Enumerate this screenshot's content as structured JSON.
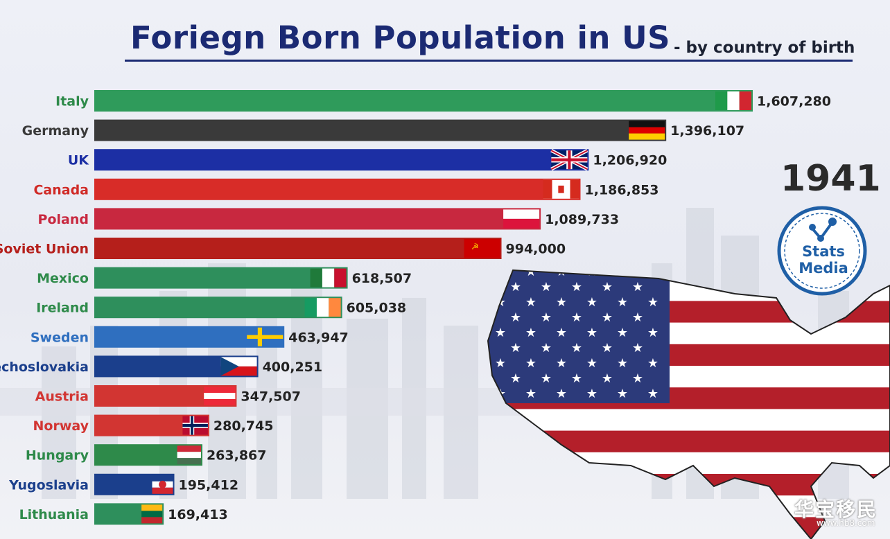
{
  "header": {
    "title": "Foriegn Born Population in US",
    "subtitle": "- by country of birth"
  },
  "year": "1941",
  "logo": {
    "line1": "Stats",
    "line2": "Media"
  },
  "watermark": {
    "text": "华宝移民",
    "url": "www.hb8.com"
  },
  "chart_data": {
    "type": "bar",
    "orientation": "horizontal",
    "title": "Foriegn Born Population in US",
    "subtitle": "- by country of birth",
    "categories": [
      "Italy",
      "Germany",
      "UK",
      "Canada",
      "Poland",
      "Soviet Union",
      "Mexico",
      "Ireland",
      "Sweden",
      "Czechoslovakia",
      "Austria",
      "Norway",
      "Hungary",
      "Yugoslavia",
      "Lithuania"
    ],
    "values": [
      1607280,
      1396107,
      1206920,
      1186853,
      1089733,
      994000,
      618507,
      605038,
      463947,
      400251,
      347507,
      280745,
      263867,
      195412,
      169413
    ],
    "value_labels": [
      "1,607,280",
      "1,396,107",
      "1,206,920",
      "1,186,853",
      "1,089,733",
      "994,000",
      "618,507",
      "605,038",
      "463,947",
      "400,251",
      "347,507",
      "280,745",
      "263,867",
      "195,412",
      "169,413"
    ],
    "bar_colors": [
      "#2f9b5b",
      "#3a3a3a",
      "#1c2fa4",
      "#d82c28",
      "#c8283f",
      "#b51f1b",
      "#2e8f5c",
      "#2e8f5c",
      "#2f6fbf",
      "#1b3f8c",
      "#d23532",
      "#d23532",
      "#2e8a4a",
      "#1b3f8c",
      "#2e8f5c"
    ],
    "label_colors": [
      "#2e8a4a",
      "#3a3a3a",
      "#1c2fa4",
      "#d02a26",
      "#c8283f",
      "#b51f1b",
      "#2e8a4a",
      "#2e8a4a",
      "#2f6fbf",
      "#1b3f8c",
      "#d23532",
      "#d23532",
      "#2e8a4a",
      "#1b3f8c",
      "#2e8a4a"
    ],
    "flags": [
      "italy",
      "germany",
      "uk",
      "canada",
      "poland",
      "soviet",
      "mexico",
      "ireland",
      "sweden",
      "czech",
      "austria",
      "norway",
      "hungary",
      "yugoslavia",
      "lithuania"
    ],
    "year": "1941"
  }
}
